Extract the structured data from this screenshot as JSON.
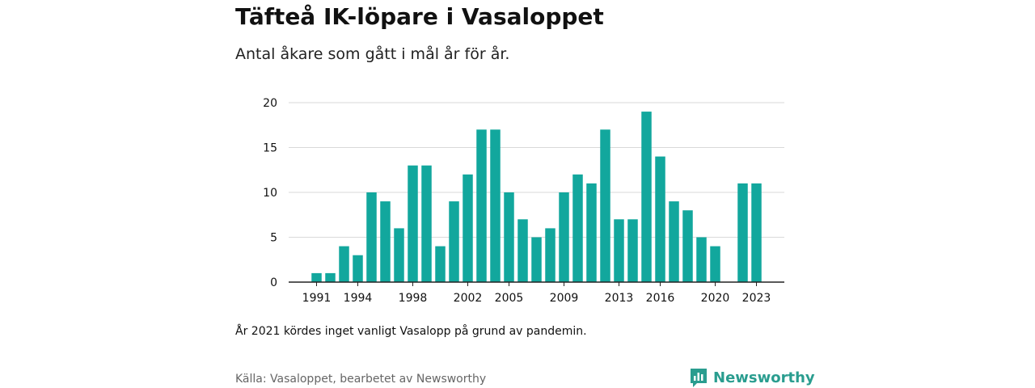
{
  "chart_data": {
    "type": "bar",
    "title": "Täfteå IK-löpare i Vasaloppet",
    "subtitle": "Antal åkare som gått i mål år för år.",
    "xlabel": "",
    "ylabel": "",
    "ylim": [
      0,
      20
    ],
    "y_ticks": [
      0,
      5,
      10,
      15,
      20
    ],
    "x_ticks": [
      1991,
      1994,
      1998,
      2002,
      2005,
      2009,
      2013,
      2016,
      2020,
      2023
    ],
    "grid": true,
    "legend": "none",
    "bar_color": "#12a79d",
    "x": [
      1990,
      1991,
      1992,
      1993,
      1994,
      1995,
      1996,
      1997,
      1998,
      1999,
      2000,
      2001,
      2002,
      2003,
      2004,
      2005,
      2006,
      2007,
      2008,
      2009,
      2010,
      2011,
      2012,
      2013,
      2014,
      2015,
      2016,
      2017,
      2018,
      2019,
      2020,
      2021,
      2022,
      2023
    ],
    "values": [
      0,
      1,
      1,
      4,
      3,
      10,
      9,
      6,
      13,
      13,
      4,
      9,
      12,
      17,
      17,
      10,
      7,
      5,
      6,
      10,
      12,
      11,
      17,
      7,
      7,
      19,
      14,
      9,
      8,
      5,
      4,
      0,
      11,
      11
    ]
  },
  "note": "År 2021 kördes inget vanligt Vasalopp på grund av pandemin.",
  "source": "Källa: Vasaloppet, bearbetet av Newsworthy",
  "logo": {
    "text": "Newsworthy",
    "icon": "newsworthy-logo-icon",
    "color": "#2a9d8f"
  }
}
